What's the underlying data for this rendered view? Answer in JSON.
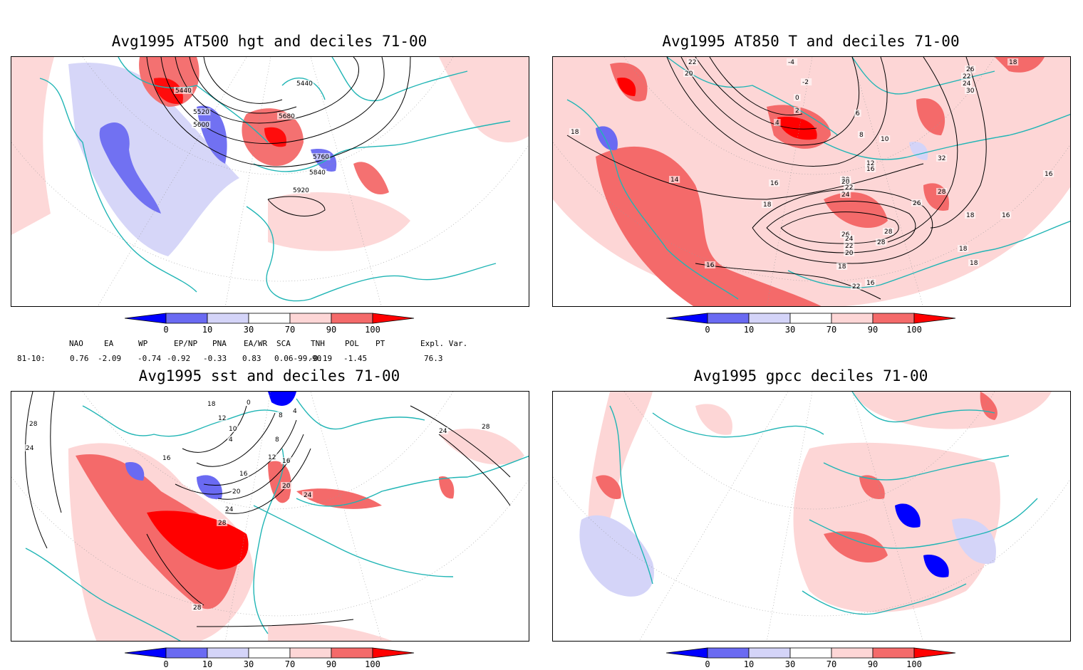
{
  "panels": {
    "tl": {
      "title": "Avg1995 AT500 hgt and deciles 71-00",
      "contour_labels": [
        "5440",
        "5440",
        "5520",
        "5600",
        "5680",
        "5760",
        "5840",
        "5920"
      ]
    },
    "tr": {
      "title": "Avg1995 AT850 T and deciles 71-00",
      "contour_labels": [
        "22",
        "20",
        "-4",
        "-2",
        "0",
        "2",
        "4",
        "6",
        "8",
        "10",
        "12",
        "16",
        "18",
        "14",
        "16",
        "16",
        "22",
        "20",
        "18",
        "20",
        "22",
        "24",
        "26",
        "28",
        "26",
        "28",
        "24",
        "22",
        "20",
        "18",
        "16",
        "28",
        "32",
        "26",
        "30",
        "22",
        "24",
        "18",
        "16",
        "18",
        "18",
        "16",
        "18"
      ]
    },
    "bl": {
      "title": "Avg1995 sst and deciles 71-00",
      "contour_labels": [
        "28",
        "24",
        "18",
        "12",
        "10",
        "4",
        "0",
        "4",
        "8",
        "12",
        "16",
        "20",
        "24",
        "28",
        "16",
        "8",
        "16",
        "20",
        "24",
        "28",
        "24",
        "28"
      ]
    },
    "br": {
      "title": "Avg1995 gpcc deciles 71-00"
    }
  },
  "colorbar": {
    "ticks": [
      "0",
      "10",
      "30",
      "70",
      "90",
      "100"
    ],
    "colors": [
      "#0000ff",
      "#6a6af2",
      "#d4d4f8",
      "#ffffff",
      "#fdd6d6",
      "#f46a6a",
      "#ff0000"
    ]
  },
  "indices": {
    "row_label": "81-10:",
    "names": [
      "NAO",
      "EA",
      "WP",
      "EP/NP",
      "PNA",
      "EA/WR",
      "SCA",
      "TNH",
      "POL",
      "PT",
      "Expl. Var."
    ],
    "values": [
      "0.76",
      "-2.09",
      "-0.74",
      "-0.92",
      "-0.33",
      "0.83",
      "0.06-99.90",
      "-0.19",
      "-1.45",
      "",
      "76.3"
    ]
  }
}
